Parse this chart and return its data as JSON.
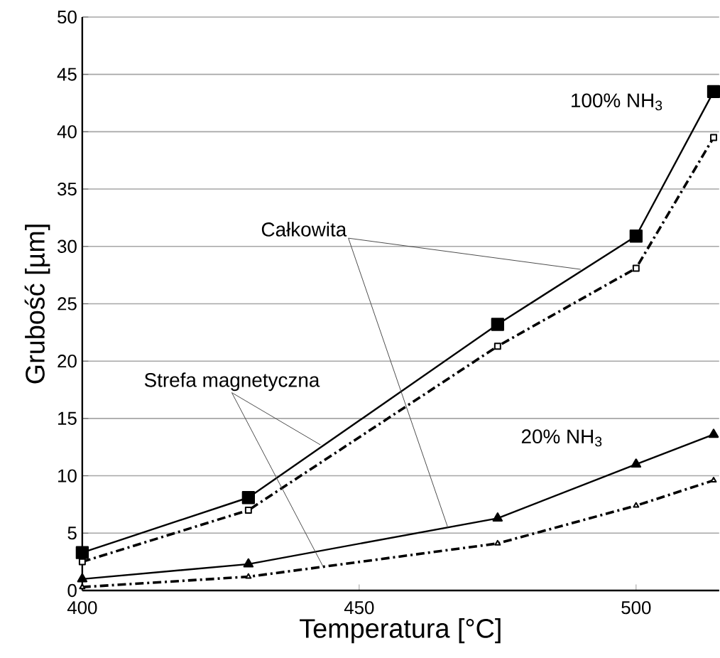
{
  "chart_data": {
    "type": "line",
    "xlabel": "Temperatura [°C]",
    "ylabel": "Grubość [µm]",
    "x": [
      400,
      430,
      475,
      500,
      514
    ],
    "series": [
      {
        "color": "#000000",
        "values": [
          3.3,
          8.1,
          23.2,
          30.9,
          43.5
        ],
        "marker": "square",
        "line_style": "solid"
      },
      {
        "color": "#000000",
        "values": [
          2.5,
          7.0,
          21.3,
          28.1,
          39.5
        ],
        "marker": "square",
        "line_style": "dashdot"
      },
      {
        "color": "#000000",
        "values": [
          1.0,
          2.3,
          6.3,
          11.0,
          13.6
        ],
        "marker": "triangle",
        "line_style": "solid"
      },
      {
        "color": "#000000",
        "values": [
          0.3,
          1.2,
          4.1,
          7.4,
          9.6
        ],
        "marker": "triangle",
        "line_style": "dashdot"
      }
    ],
    "xlim": [
      400,
      515
    ],
    "ylim": [
      0,
      50
    ],
    "xticks": [
      400,
      450,
      500
    ],
    "yticks": [
      0,
      5,
      10,
      15,
      20,
      25,
      30,
      35,
      40,
      45,
      50
    ],
    "grid": "y",
    "legend": false,
    "annotations": [
      {
        "text": "Całkowita",
        "x": 490,
        "y": 28
      },
      {
        "text": "Strefa magnetyczna",
        "x": 443,
        "y": 12.7
      },
      "100% NH$_{3}$",
      "20% NH$_{3}$"
    ]
  }
}
